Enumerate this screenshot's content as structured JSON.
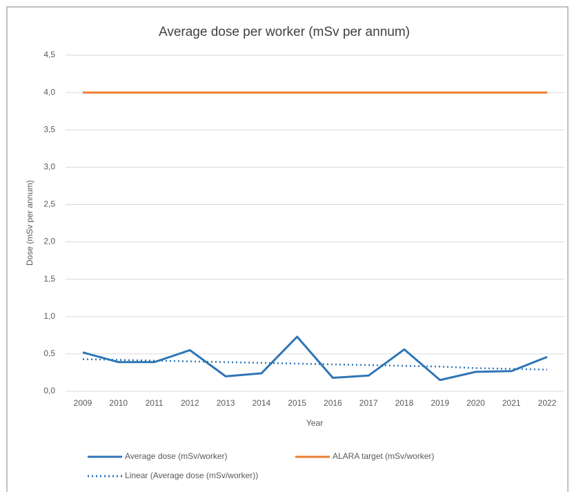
{
  "chart_data": {
    "type": "line",
    "title": "Average dose per worker (mSv per annum)",
    "x_label": "Year",
    "y_label": "Dose (mSv per annum)",
    "categories": [
      "2009",
      "2010",
      "2011",
      "2012",
      "2013",
      "2014",
      "2015",
      "2016",
      "2017",
      "2018",
      "2019",
      "2020",
      "2021",
      "2022"
    ],
    "series": [
      {
        "name": "Average dose (mSv/worker)",
        "color": "#2e75b6",
        "line_style": "solid",
        "values": [
          0.52,
          0.39,
          0.39,
          0.55,
          0.2,
          0.24,
          0.73,
          0.18,
          0.21,
          0.56,
          0.15,
          0.26,
          0.27,
          0.46
        ]
      },
      {
        "name": "ALARA target (mSv/worker)",
        "color": "#ed7d31",
        "line_style": "solid",
        "values": [
          4,
          4,
          4,
          4,
          4,
          4,
          4,
          4,
          4,
          4,
          4,
          4,
          4,
          4
        ]
      },
      {
        "name": "Linear (Average dose (mSv/worker))",
        "color": "#2e75b6",
        "line_style": "dotted",
        "values": [
          0.43,
          0.42,
          0.41,
          0.4,
          0.39,
          0.38,
          0.37,
          0.36,
          0.35,
          0.34,
          0.33,
          0.31,
          0.3,
          0.29
        ]
      }
    ],
    "ylim": [
      0,
      4.5
    ],
    "yticks": [
      {
        "value": 0,
        "label": "0,0"
      },
      {
        "value": 0.5,
        "label": "0,5"
      },
      {
        "value": 1,
        "label": "1,0"
      },
      {
        "value": 1.5,
        "label": "1,5"
      },
      {
        "value": 2,
        "label": "2,0"
      },
      {
        "value": 2.5,
        "label": "2,5"
      },
      {
        "value": 3,
        "label": "3,0"
      },
      {
        "value": 3.5,
        "label": "3,5"
      },
      {
        "value": 4,
        "label": "4,0"
      },
      {
        "value": 4.5,
        "label": "4,5"
      }
    ],
    "grid": true
  }
}
